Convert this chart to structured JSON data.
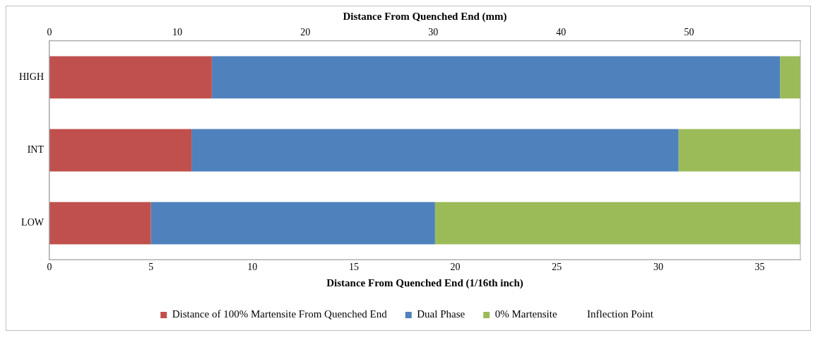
{
  "chart_data": {
    "type": "bar",
    "orientation": "horizontal",
    "stacked": true,
    "categories": [
      "HIGH",
      "INT",
      "LOW"
    ],
    "series": [
      {
        "name": "Distance of 100% Martensite From Quenched End",
        "color": "#c0504d",
        "values": [
          8,
          7,
          5
        ]
      },
      {
        "name": "Dual Phase",
        "color": "#4f81bd",
        "values": [
          28,
          24,
          14
        ]
      },
      {
        "name": "0% Martensite",
        "color": "#9bbb59",
        "values": [
          1,
          6,
          18
        ]
      },
      {
        "name": "Inflection Point",
        "type": "scatter",
        "marker": "none",
        "values": [
          null,
          null,
          null
        ]
      }
    ],
    "xlabel": "Distance From Quenched End (1/16th inch)",
    "xlim": [
      0,
      37
    ],
    "xticks": [
      0,
      5,
      10,
      15,
      20,
      25,
      30,
      35
    ],
    "x2label": "Distance From Quenched End (mm)",
    "x2lim": [
      0,
      58.7
    ],
    "x2ticks": [
      0,
      10,
      20,
      30,
      40,
      50
    ],
    "grid": false,
    "legend": "bottom"
  }
}
